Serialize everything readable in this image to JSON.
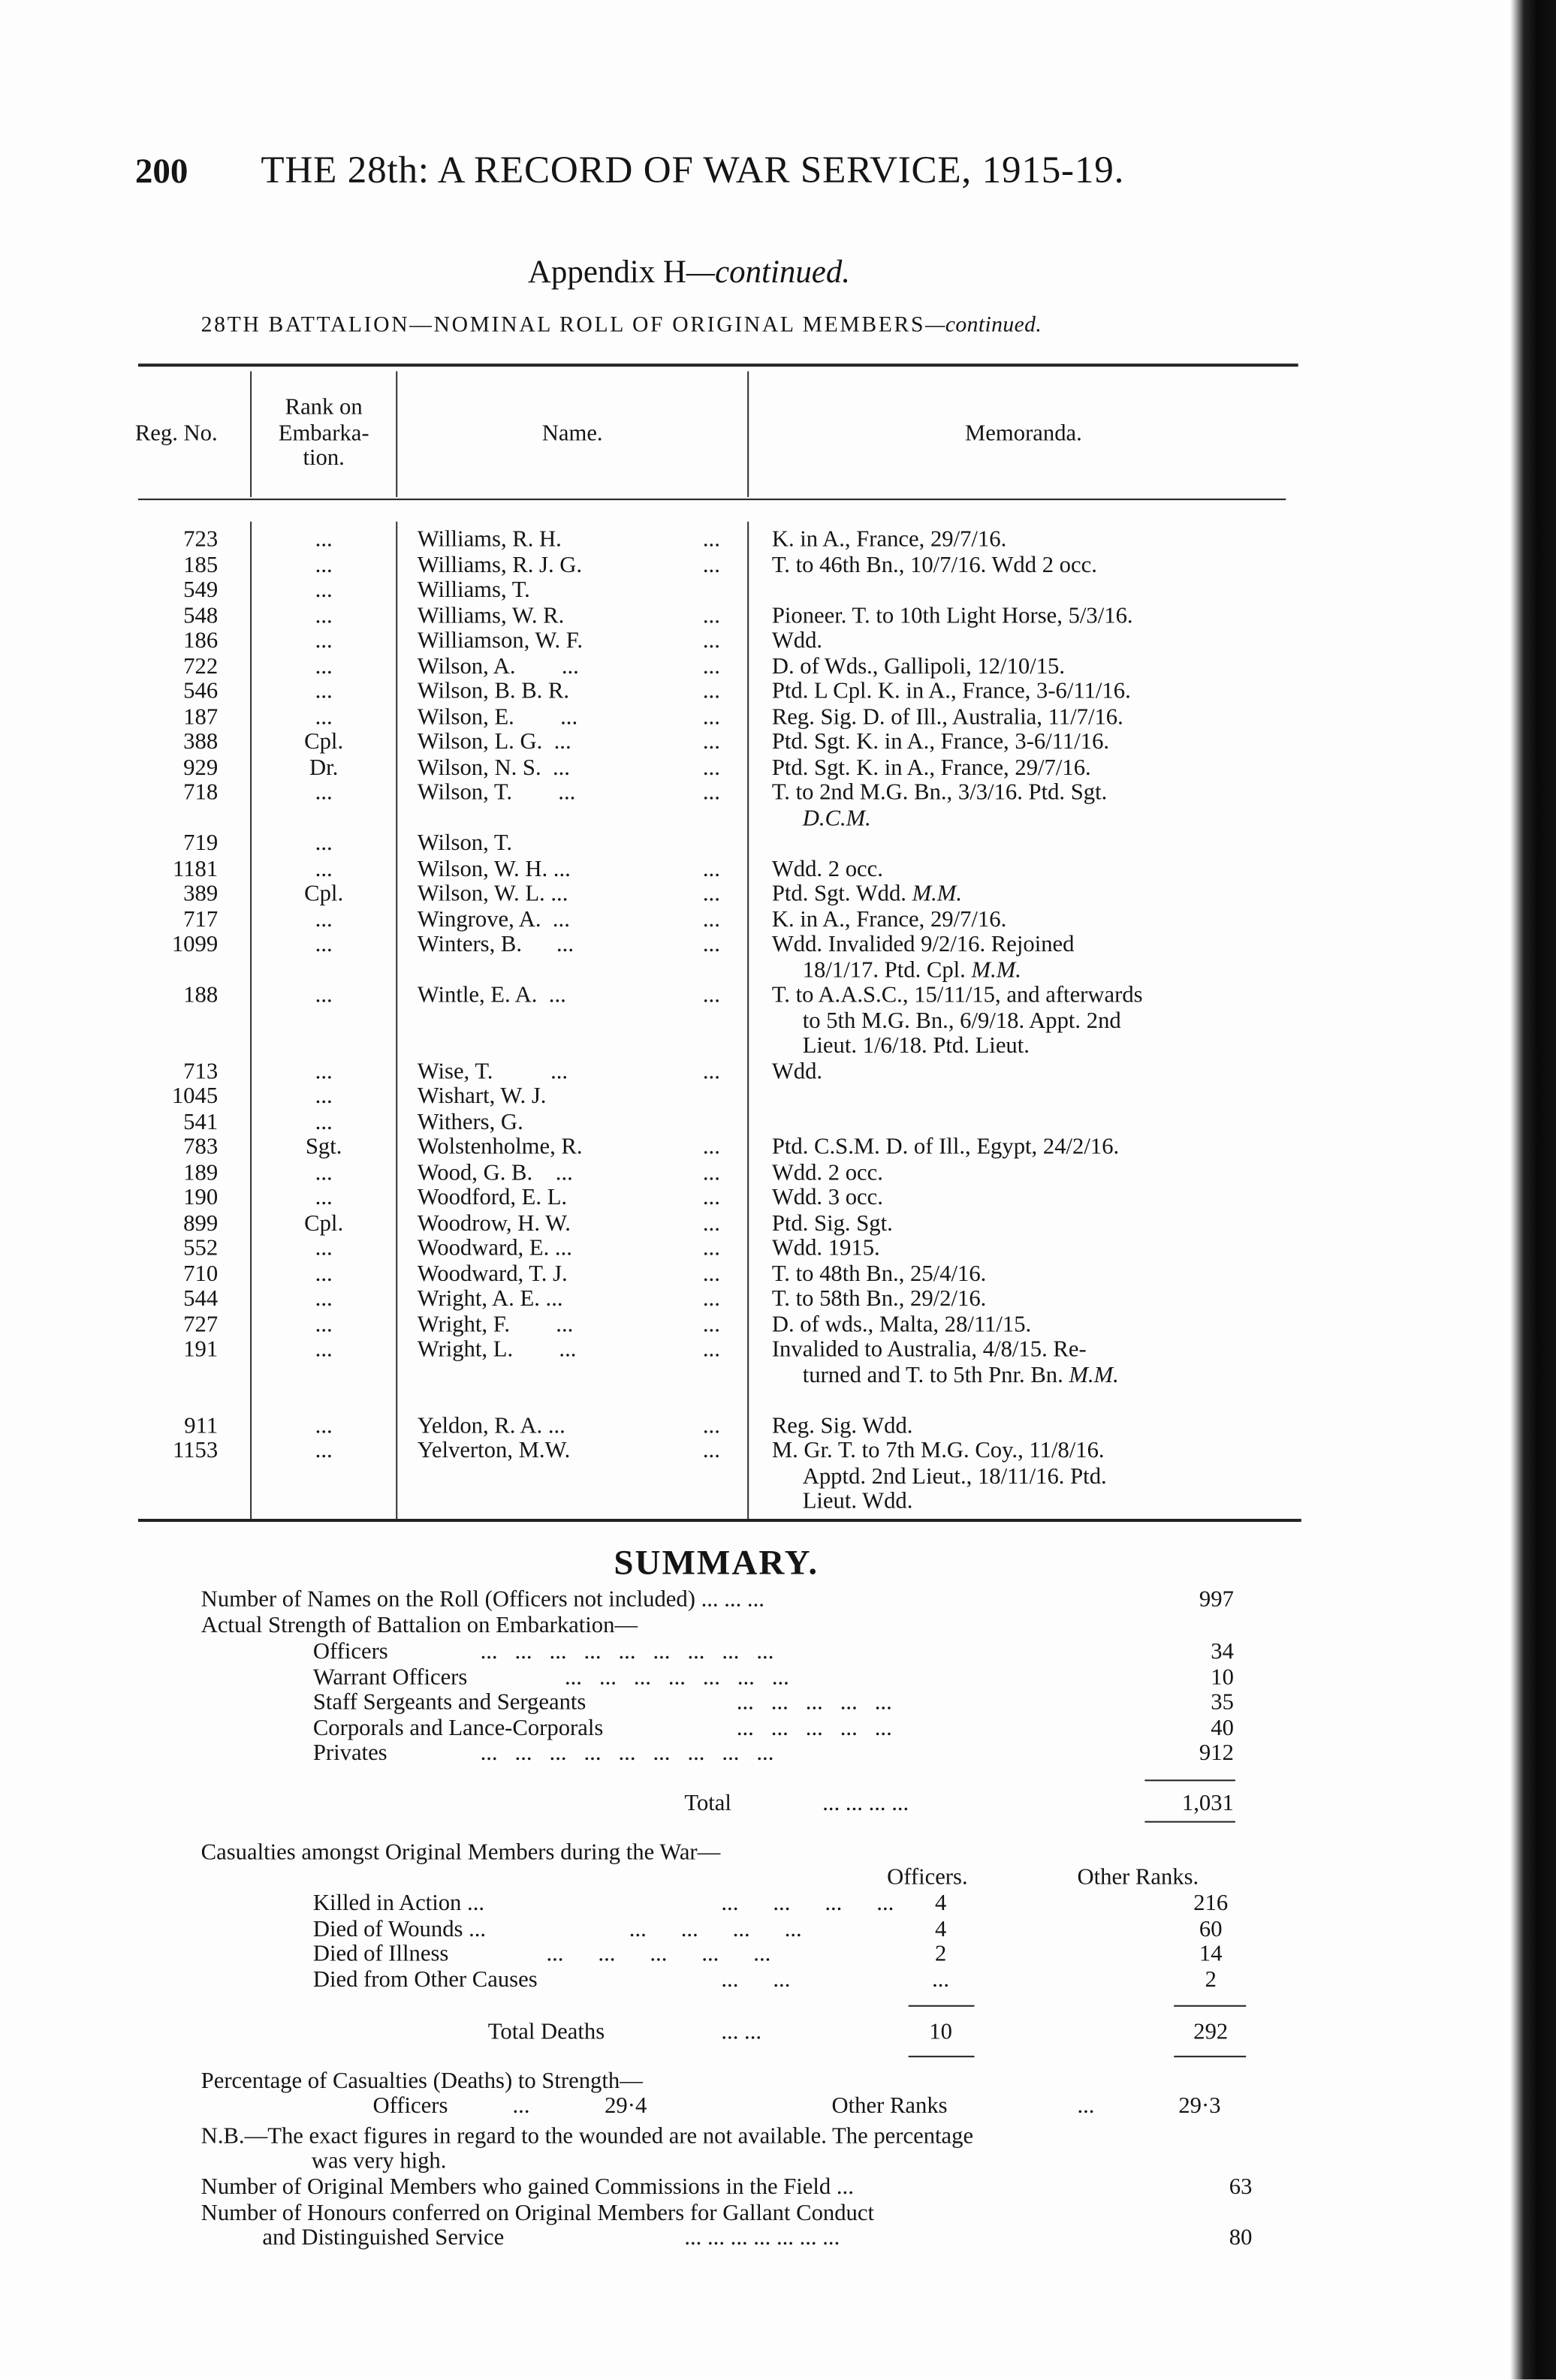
{
  "header": {
    "page_number": "200",
    "running_title": "THE 28th: A RECORD OF WAR SERVICE, 1915-19.",
    "appendix_title": "Appendix H",
    "appendix_suffix": "—continued.",
    "subtitle": "28TH BATTALION—NOMINAL ROLL OF ORIGINAL MEMBERS",
    "subtitle_suffix": "—continued."
  },
  "table": {
    "columns": [
      "Reg. No.",
      "Rank on",
      "Embarka-",
      "tion.",
      "Name.",
      "Memoranda."
    ],
    "rows": [
      {
        "reg": "723",
        "rank": "...",
        "name": "Williams, R. H.",
        "dots": "...",
        "memo": [
          [
            "K. in A., France, 29/7/16."
          ]
        ]
      },
      {
        "reg": "185",
        "rank": "...",
        "name": "Williams, R. J. G.",
        "dots": "...",
        "memo": [
          [
            "T. to 46th Bn., 10/7/16.  Wdd 2 occ."
          ]
        ]
      },
      {
        "reg": "549",
        "rank": "...",
        "name": "Williams, T.",
        "dots": "",
        "memo": []
      },
      {
        "reg": "548",
        "rank": "...",
        "name": "Williams, W. R.",
        "dots": "...",
        "memo": [
          [
            "Pioneer.  T. to 10th Light Horse, 5/3/16."
          ]
        ]
      },
      {
        "reg": "186",
        "rank": "...",
        "name": "Williamson, W. F.",
        "dots": "...",
        "memo": [
          [
            "Wdd."
          ]
        ]
      },
      {
        "reg": "722",
        "rank": "...",
        "name": "Wilson, A.        ...",
        "dots": "...",
        "memo": [
          [
            "D. of Wds., Gallipoli, 12/10/15."
          ]
        ]
      },
      {
        "reg": "546",
        "rank": "...",
        "name": "Wilson, B. B. R.",
        "dots": "...",
        "memo": [
          [
            "Ptd. L Cpl.  K. in A., France, 3-6/11/16."
          ]
        ]
      },
      {
        "reg": "187",
        "rank": "...",
        "name": "Wilson, E.        ...",
        "dots": "...",
        "memo": [
          [
            "Reg. Sig.  D. of Ill., Australia, 11/7/16."
          ]
        ]
      },
      {
        "reg": "388",
        "rank": "Cpl.",
        "name": "Wilson, L. G.  ...",
        "dots": "...",
        "memo": [
          [
            "Ptd. Sgt.  K. in A., France, 3-6/11/16."
          ]
        ]
      },
      {
        "reg": "929",
        "rank": "Dr.",
        "name": "Wilson, N. S.  ...",
        "dots": "...",
        "memo": [
          [
            "Ptd. Sgt.  K. in A., France, 29/7/16."
          ]
        ]
      },
      {
        "reg": "718",
        "rank": "...",
        "name": "Wilson, T.        ...",
        "dots": "...",
        "memo": [
          [
            "T. to 2nd M.G. Bn., 3/3/16.  Ptd. Sgt."
          ],
          [
            {
              "em": "D.C.M."
            }
          ]
        ]
      },
      {
        "reg": "719",
        "rank": "...",
        "name": "Wilson, T.",
        "dots": "",
        "memo": []
      },
      {
        "reg": "1181",
        "rank": "...",
        "name": "Wilson, W. H. ...",
        "dots": "...",
        "memo": [
          [
            "Wdd. 2 occ."
          ]
        ]
      },
      {
        "reg": "389",
        "rank": "Cpl.",
        "name": "Wilson, W. L. ...",
        "dots": "...",
        "memo": [
          [
            "Ptd.  Sgt.  Wdd.  ",
            {
              "em": "M.M."
            }
          ]
        ]
      },
      {
        "reg": "717",
        "rank": "...",
        "name": "Wingrove, A.  ...",
        "dots": "...",
        "memo": [
          [
            "K. in A., France, 29/7/16."
          ]
        ]
      },
      {
        "reg": "1099",
        "rank": "...",
        "name": "Winters, B.      ...",
        "dots": "...",
        "memo": [
          [
            "Wdd.        Invalided   9/2/16.   Rejoined"
          ],
          [
            "18/1/17.  Ptd. Cpl.  ",
            {
              "em": "M.M."
            }
          ]
        ]
      },
      {
        "reg": "188",
        "rank": "...",
        "name": "Wintle, E. A.  ...",
        "dots": "...",
        "memo": [
          [
            "T. to A.A.S.C., 15/11/15, and afterwards"
          ],
          [
            "to 5th M.G. Bn., 6/9/18.  Appt. 2nd"
          ],
          [
            "Lieut.  1/6/18.  Ptd.  Lieut."
          ]
        ]
      },
      {
        "reg": "713",
        "rank": "...",
        "name": "Wise, T.          ...",
        "dots": "...",
        "memo": [
          [
            "Wdd."
          ]
        ]
      },
      {
        "reg": "1045",
        "rank": "...",
        "name": "Wishart, W. J.",
        "dots": "",
        "memo": []
      },
      {
        "reg": "541",
        "rank": "...",
        "name": "Withers, G.",
        "dots": "",
        "memo": []
      },
      {
        "reg": "783",
        "rank": "Sgt.",
        "name": "Wolstenholme, R.",
        "dots": "...",
        "memo": [
          [
            "Ptd. C.S.M.  D. of Ill., Egypt, 24/2/16."
          ]
        ]
      },
      {
        "reg": "189",
        "rank": "...",
        "name": "Wood, G. B.    ...",
        "dots": "...",
        "memo": [
          [
            "Wdd. 2 occ."
          ]
        ]
      },
      {
        "reg": "190",
        "rank": "...",
        "name": "Woodford, E. L.",
        "dots": "...",
        "memo": [
          [
            "Wdd. 3 occ."
          ]
        ]
      },
      {
        "reg": "899",
        "rank": "Cpl.",
        "name": "Woodrow, H. W.",
        "dots": "...",
        "memo": [
          [
            "Ptd. Sig. Sgt."
          ]
        ]
      },
      {
        "reg": "552",
        "rank": "...",
        "name": "Woodward, E. ...",
        "dots": "...",
        "memo": [
          [
            "Wdd.  1915."
          ]
        ]
      },
      {
        "reg": "710",
        "rank": "...",
        "name": "Woodward, T. J.",
        "dots": "...",
        "memo": [
          [
            "T. to 48th Bn., 25/4/16."
          ]
        ]
      },
      {
        "reg": "544",
        "rank": "...",
        "name": "Wright, A. E. ...",
        "dots": "...",
        "memo": [
          [
            "T. to 58th Bn., 29/2/16."
          ]
        ]
      },
      {
        "reg": "727",
        "rank": "...",
        "name": "Wright, F.        ...",
        "dots": "...",
        "memo": [
          [
            "D. of wds., Malta, 28/11/15."
          ]
        ]
      },
      {
        "reg": "191",
        "rank": "...",
        "name": "Wright, L.        ...",
        "dots": "...",
        "memo": [
          [
            "Invalided   to   Australia,   4/8/15.  Re-"
          ],
          [
            "turned and T. to 5th Pnr. Bn.  ",
            {
              "em": "M.M."
            }
          ]
        ]
      },
      {
        "reg": "911",
        "rank": "...",
        "name": "Yeldon, R. A. ...",
        "dots": "...",
        "memo": [
          [
            "Reg. Sig.  Wdd."
          ]
        ]
      },
      {
        "reg": "1153",
        "rank": "...",
        "name": "Yelverton, M.W.",
        "dots": "...",
        "memo": [
          [
            "M. Gr.  T. to 7th M.G. Coy., 11/8/16."
          ],
          [
            "Apptd.  2nd  Lieut., 18/11/16.  Ptd."
          ],
          [
            "Lieut.  Wdd."
          ]
        ]
      }
    ]
  },
  "summary": {
    "title": "SUMMARY.",
    "names_on_roll": {
      "label": "Number of Names on the Roll (Officers not included) ...      ...      ...",
      "value": "997"
    },
    "strength_heading": "Actual Strength of Battalion on Embarkation—",
    "strength": [
      {
        "label": "Officers",
        "dots": "...   ...   ...   ...   ...   ...   ...   ...   ...",
        "value": "34"
      },
      {
        "label": "Warrant Officers",
        "dots": "...   ...   ...   ...   ...   ...   ...",
        "value": "10"
      },
      {
        "label": "Staff Sergeants and Sergeants",
        "dots": "...   ...   ...   ...   ...",
        "value": "35"
      },
      {
        "label": "Corporals and Lance-Corporals",
        "dots": "...   ...   ...   ...   ...",
        "value": "40"
      },
      {
        "label": "Privates",
        "dots": "...   ...   ...   ...   ...   ...   ...   ...   ...",
        "value": "912"
      }
    ],
    "total": {
      "label": "Total",
      "dots": "...      ...      ...      ...",
      "value": "1,031"
    },
    "casualties_heading": "Casualties amongst Original Members during the War—",
    "casualty_columns": [
      "Officers.",
      "Other Ranks."
    ],
    "casualties": [
      {
        "label": "Killed in Action ...",
        "dots": "...      ...      ...      ...",
        "officers": "4",
        "other": "216"
      },
      {
        "label": "Died of Wounds ...",
        "dots": "...      ...      ...      ...",
        "officers": "4",
        "other": "60"
      },
      {
        "label": "Died of Illness",
        "dots": "...      ...      ...      ...      ...",
        "officers": "2",
        "other": "14"
      },
      {
        "label": "Died from Other Causes",
        "dots": "...      ...",
        "officers": "...",
        "other": "2"
      }
    ],
    "total_deaths": {
      "label": "Total Deaths",
      "dots": "...      ...",
      "officers": "10",
      "other": "292"
    },
    "percentage_heading": "Percentage of Casualties (Deaths) to Strength—",
    "percent_officers": {
      "label": "Officers",
      "dots": "...",
      "value": "29·4"
    },
    "percent_other": {
      "label": "Other Ranks",
      "dots": "...",
      "value": "29·3"
    },
    "nb_line1": "N.B.—The exact figures in regard to the wounded are not available.  The percentage",
    "nb_line2": "was very high.",
    "commissions": {
      "label": "Number of Original Members who gained Commissions in the Field  ...",
      "value": "63"
    },
    "honours_line1": "Number of Honours conferred on Original Members for Gallant Conduct",
    "honours": {
      "label": "and Distinguished Service",
      "dots": "...   ...   ...   ...   ...   ...   ...",
      "value": "80"
    }
  }
}
